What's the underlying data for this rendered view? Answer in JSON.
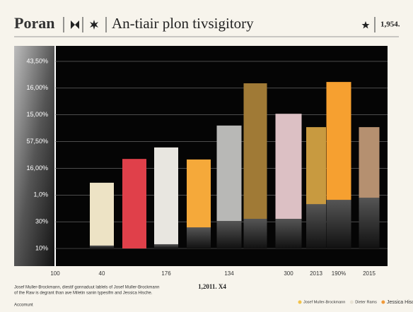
{
  "header": {
    "brand": "Poran",
    "title": "An-tiair plon tivsigitory",
    "year": "1,954."
  },
  "chart_data": {
    "type": "bar",
    "categories": [
      "40",
      null,
      "176",
      null,
      "134",
      null,
      "300",
      "2013",
      "190%",
      "2015"
    ],
    "x_origin_label": "100",
    "values": [
      3.46,
      4.35,
      4.78,
      4.33,
      5.6,
      7.18,
      6.04,
      5.54,
      7.23,
      5.54
    ],
    "lower_values": [
      1.11,
      null,
      1.16,
      1.79,
      2.03,
      2.11,
      2.11,
      2.66,
      2.82,
      2.9
    ],
    "colors": [
      "#ede3c5",
      "#e0404a",
      "#e8e6e0",
      "#f5a93a",
      "#b8b8b6",
      "#a07a36",
      "#dcc0c4",
      "#c89a40",
      "#f6a030",
      "#b59070"
    ],
    "ylim": [
      0.34,
      8.58
    ],
    "yticks": [
      {
        "value": 1,
        "label": "10%"
      },
      {
        "value": 2,
        "label": "30%"
      },
      {
        "value": 3,
        "label": "1,0%"
      },
      {
        "value": 4,
        "label": "16,00%"
      },
      {
        "value": 5,
        "label": "57,50%"
      },
      {
        "value": 6,
        "label": "15,00%"
      },
      {
        "value": 7,
        "label": "16,00%"
      },
      {
        "value": 8,
        "label": "43,50%"
      }
    ],
    "grid": true,
    "legend": [
      {
        "name": "Josef Muller-Brockmann",
        "color": "#f2c24a"
      },
      {
        "name": "Dieter Rams",
        "color": "#e8e2d4"
      },
      {
        "name": "Jessica Hische",
        "color": "#f09a3a"
      }
    ]
  },
  "footer": {
    "note_lines": [
      "Josef Muller-Brockmann,  diestif gonnaduut lablels of Josef Muller-Brockmann",
      "of the Raw is degrant than ave Miletin sanin typesifm and Jessica Hische."
    ],
    "center": "1,2011. X4",
    "account": "Accomunt"
  }
}
